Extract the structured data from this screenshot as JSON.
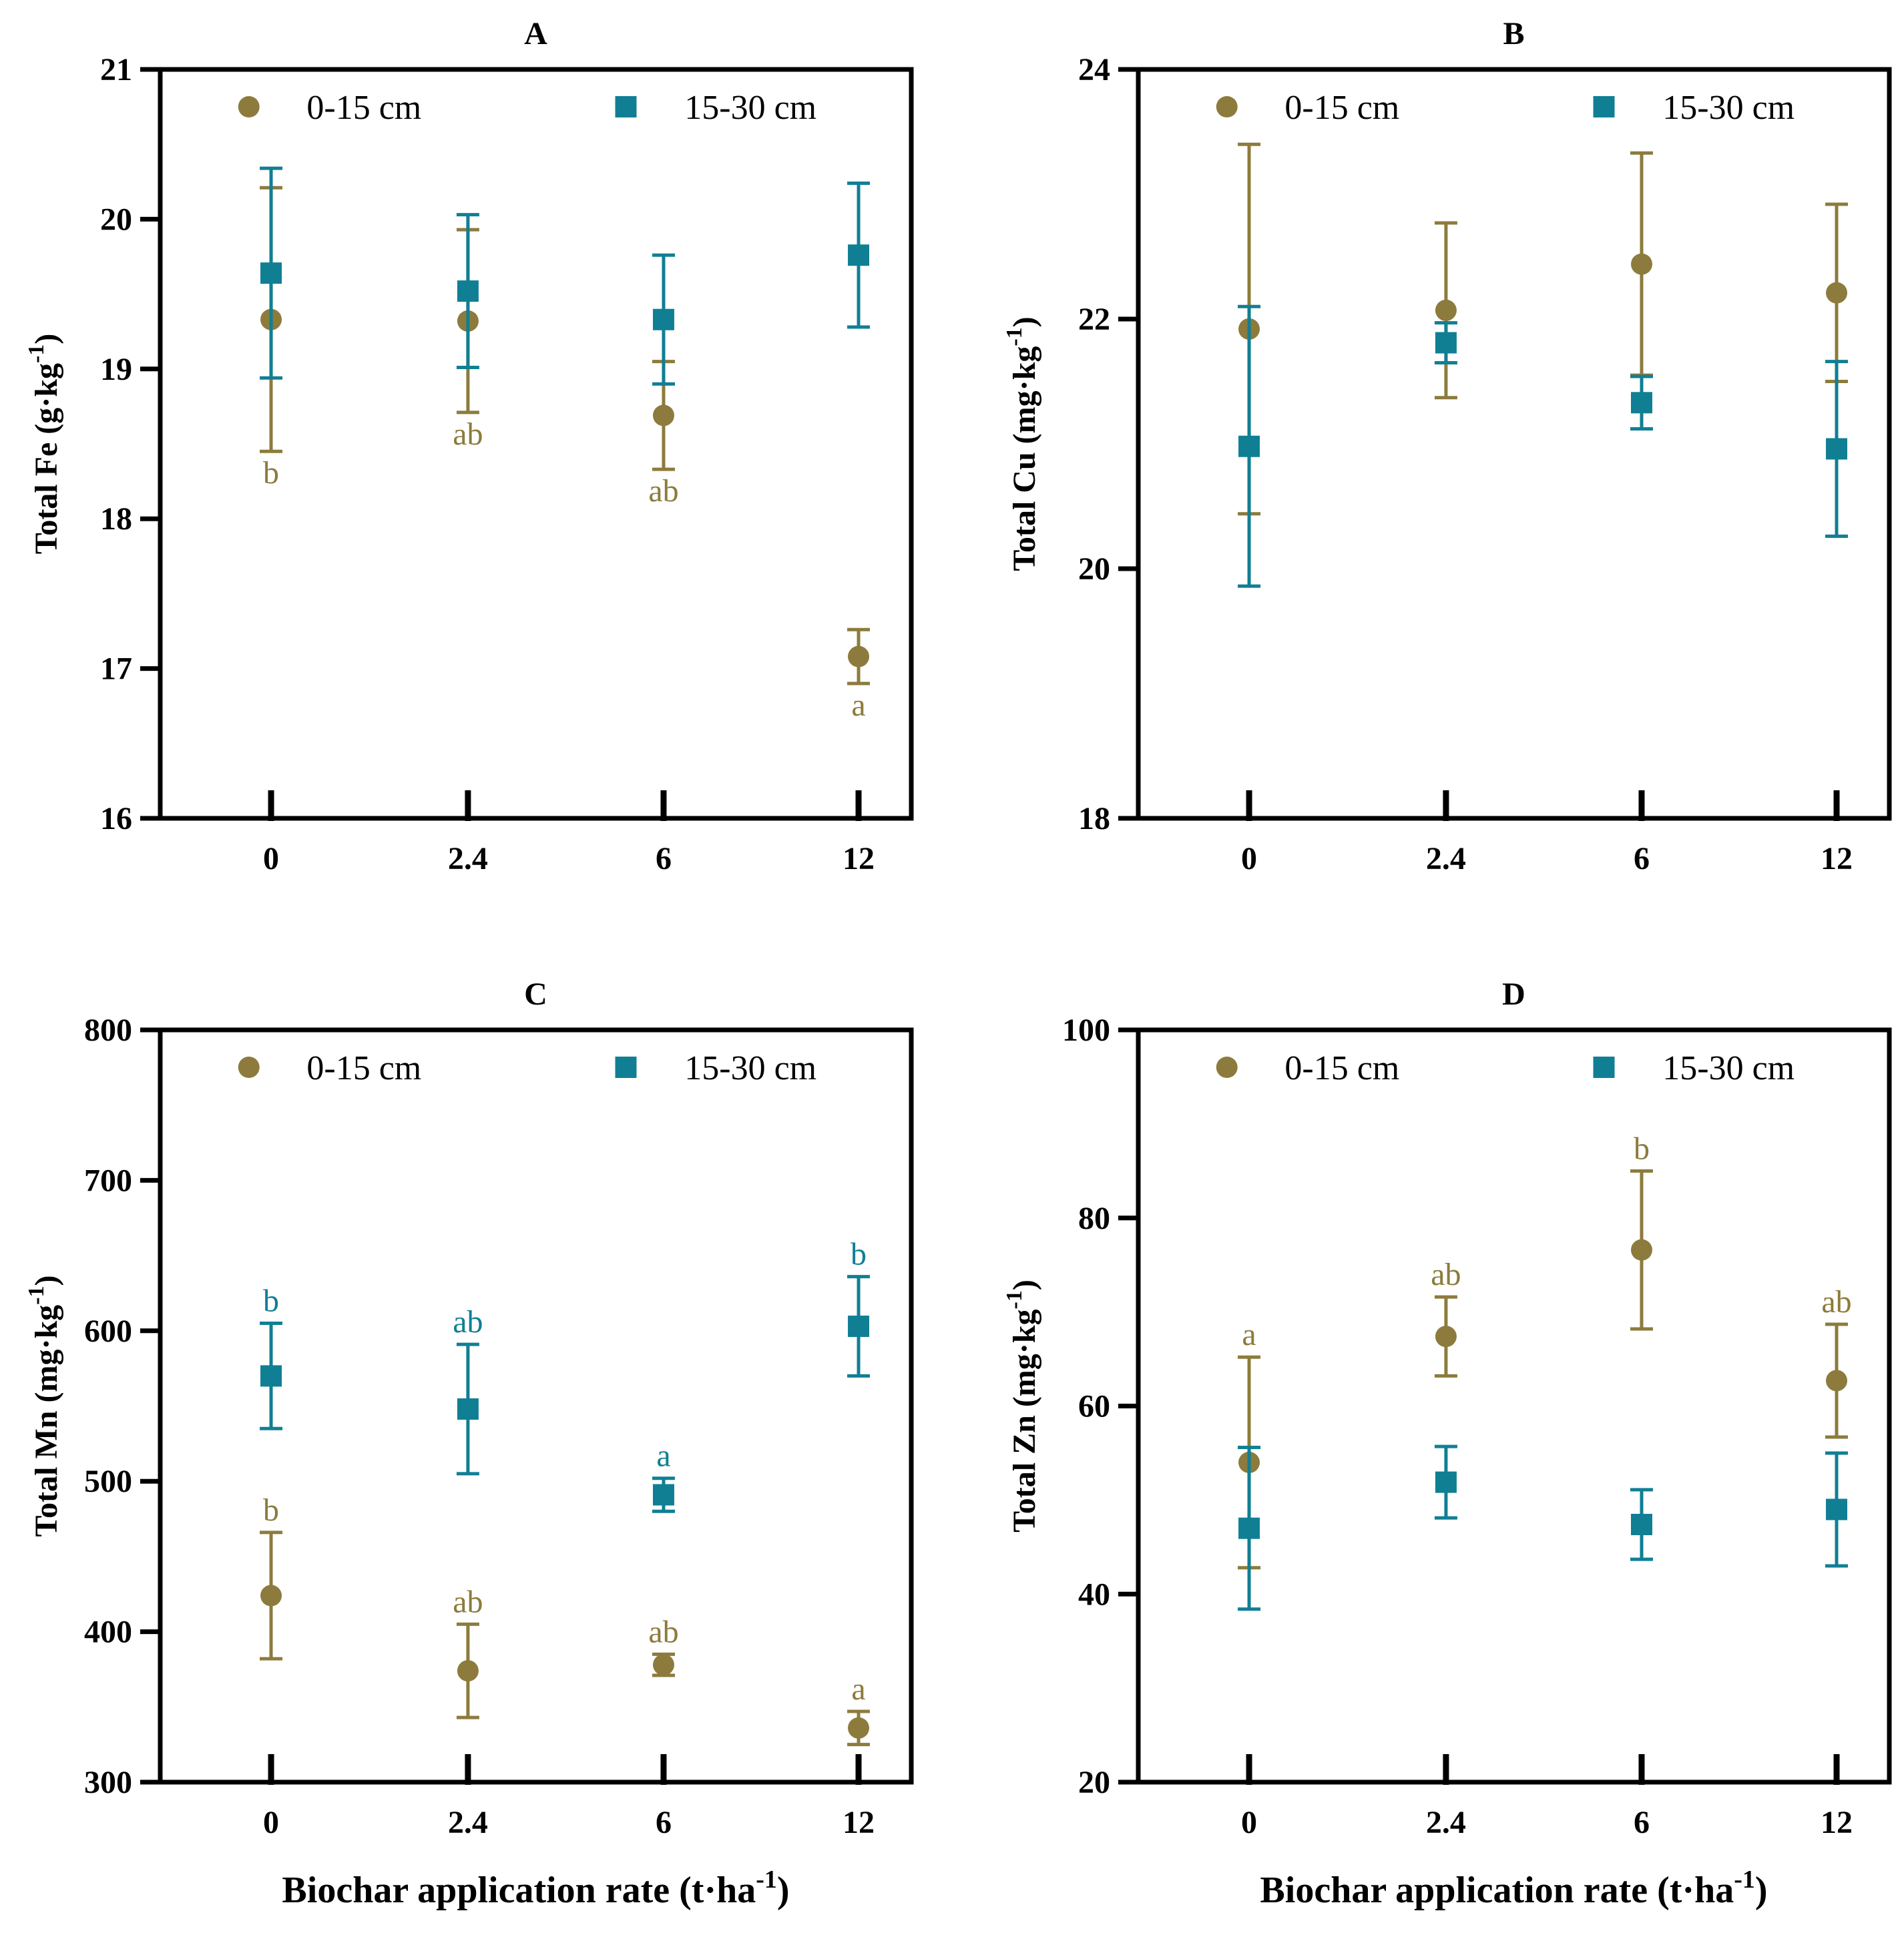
{
  "colors": {
    "depth_0_15": "#8C7B3C",
    "depth_15_30": "#107F94",
    "axis": "#000000"
  },
  "x_axis_title": "Biochar application rate (t·ha",
  "x_axis_title_sup": "-1",
  "x_axis_title_close": ")",
  "chart_data": [
    {
      "type": "scatter",
      "title": "A",
      "xlabel": "Biochar application rate (t·ha-1)",
      "ylabel": "Total  Fe (g·kg-1)",
      "ylabel_main": "Total  Fe (g·kg",
      "categories": [
        "0",
        "2.4",
        "6",
        "12"
      ],
      "ylim": [
        16,
        21
      ],
      "yticks": [
        16,
        17,
        18,
        19,
        20,
        21
      ],
      "legend_position": "top",
      "series": [
        {
          "name": "0-15 cm",
          "marker": "circle",
          "values": [
            19.33,
            19.32,
            18.69,
            17.08
          ],
          "errors": [
            0.88,
            0.61,
            0.36,
            0.18
          ],
          "labels": [
            "b",
            "ab",
            "ab",
            "a"
          ]
        },
        {
          "name": "15-30 cm",
          "marker": "square",
          "values": [
            19.64,
            19.52,
            19.33,
            19.76
          ],
          "errors": [
            0.7,
            0.51,
            0.43,
            0.48
          ],
          "labels": [
            "",
            "",
            "",
            ""
          ]
        }
      ]
    },
    {
      "type": "scatter",
      "title": "B",
      "xlabel": "",
      "ylabel": "Total  Cu (mg·kg-1)",
      "ylabel_main": "Total  Cu (mg·kg",
      "categories": [
        "0",
        "2.4",
        "6",
        "12"
      ],
      "ylim": [
        18,
        24
      ],
      "yticks": [
        18,
        20,
        22,
        24
      ],
      "legend_position": "top",
      "series": [
        {
          "name": "0-15 cm",
          "marker": "circle",
          "values": [
            21.92,
            22.07,
            22.44,
            22.21
          ],
          "errors": [
            1.48,
            0.7,
            0.89,
            0.71
          ],
          "labels": [
            "",
            "",
            "",
            ""
          ]
        },
        {
          "name": "15-30 cm",
          "marker": "square",
          "values": [
            20.98,
            21.81,
            21.33,
            20.96
          ],
          "errors": [
            1.12,
            0.16,
            0.21,
            0.7
          ],
          "labels": [
            "",
            "",
            "",
            ""
          ]
        }
      ]
    },
    {
      "type": "scatter",
      "title": "C",
      "xlabel": "Biochar application rate (t·ha-1)",
      "ylabel": "Total  Mn (mg·kg-1)",
      "ylabel_main": "Total  Mn (mg·kg",
      "categories": [
        "0",
        "2.4",
        "6",
        "12"
      ],
      "ylim": [
        300,
        800
      ],
      "yticks": [
        300,
        400,
        500,
        600,
        700,
        800
      ],
      "legend_position": "top",
      "series": [
        {
          "name": "0-15 cm",
          "marker": "circle",
          "values": [
            424,
            374,
            378,
            336
          ],
          "errors": [
            42,
            31,
            7,
            11
          ],
          "labels": [
            "b",
            "ab",
            "ab",
            "a"
          ]
        },
        {
          "name": "15-30 cm",
          "marker": "square",
          "values": [
            570,
            548,
            491,
            603
          ],
          "errors": [
            35,
            43,
            11,
            33
          ],
          "labels": [
            "b",
            "ab",
            "a",
            "b"
          ]
        }
      ]
    },
    {
      "type": "scatter",
      "title": "D",
      "xlabel": "Biochar application rate (t·ha-1)",
      "ylabel": "Total  Zn (mg·kg-1)",
      "ylabel_main": "Total  Zn (mg·kg",
      "categories": [
        "0",
        "2.4",
        "6",
        "12"
      ],
      "ylim": [
        20,
        100
      ],
      "yticks": [
        20,
        40,
        60,
        80,
        100
      ],
      "legend_position": "top",
      "series": [
        {
          "name": "0-15 cm",
          "marker": "circle",
          "values": [
            54.0,
            67.4,
            76.6,
            62.7
          ],
          "errors": [
            11.2,
            4.2,
            8.4,
            6.0
          ],
          "labels": [
            "a",
            "ab",
            "b",
            "ab"
          ]
        },
        {
          "name": "15-30 cm",
          "marker": "square",
          "values": [
            47.0,
            51.9,
            47.4,
            49.0
          ],
          "errors": [
            8.6,
            3.8,
            3.7,
            6.0
          ],
          "labels": [
            "",
            "",
            "",
            ""
          ]
        }
      ]
    }
  ]
}
